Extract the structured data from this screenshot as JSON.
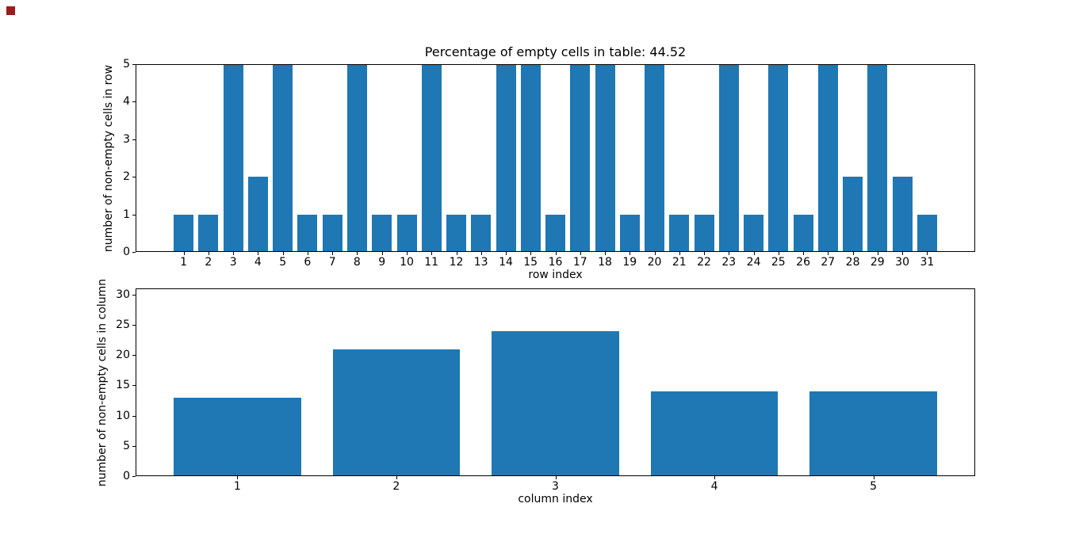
{
  "figure": {
    "background": "#ffffff",
    "marker": {
      "color": "#9b1c1c"
    }
  },
  "chart_data": [
    {
      "type": "bar",
      "title": "Percentage of empty cells in table: 44.52",
      "xlabel": "row index",
      "ylabel": "number of non-empty cells in row",
      "categories": [
        1,
        2,
        3,
        4,
        5,
        6,
        7,
        8,
        9,
        10,
        11,
        12,
        13,
        14,
        15,
        16,
        17,
        18,
        19,
        20,
        21,
        22,
        23,
        24,
        25,
        26,
        27,
        28,
        29,
        30,
        31
      ],
      "values": [
        1,
        1,
        5,
        2,
        5,
        1,
        1,
        5,
        1,
        1,
        5,
        1,
        1,
        5,
        5,
        1,
        5,
        5,
        1,
        5,
        1,
        1,
        5,
        1,
        5,
        1,
        5,
        2,
        5,
        2,
        1
      ],
      "bar_color": "#1f77b4",
      "bar_width": 0.8,
      "xlim": [
        -0.94,
        32.94
      ],
      "ylim": [
        0,
        5
      ],
      "yticks": [
        0,
        1,
        2,
        3,
        4,
        5
      ],
      "grid": false,
      "legend_position": "none"
    },
    {
      "type": "bar",
      "title": "",
      "xlabel": "column index",
      "ylabel": "number of non-empty cells in column",
      "categories": [
        1,
        2,
        3,
        4,
        5
      ],
      "values": [
        13,
        21,
        24,
        14,
        14
      ],
      "bar_color": "#1f77b4",
      "bar_width": 0.8,
      "xlim": [
        0.36,
        5.64
      ],
      "ylim": [
        0,
        31
      ],
      "yticks": [
        0,
        5,
        10,
        15,
        20,
        25,
        30
      ],
      "grid": false,
      "legend_position": "none"
    }
  ]
}
